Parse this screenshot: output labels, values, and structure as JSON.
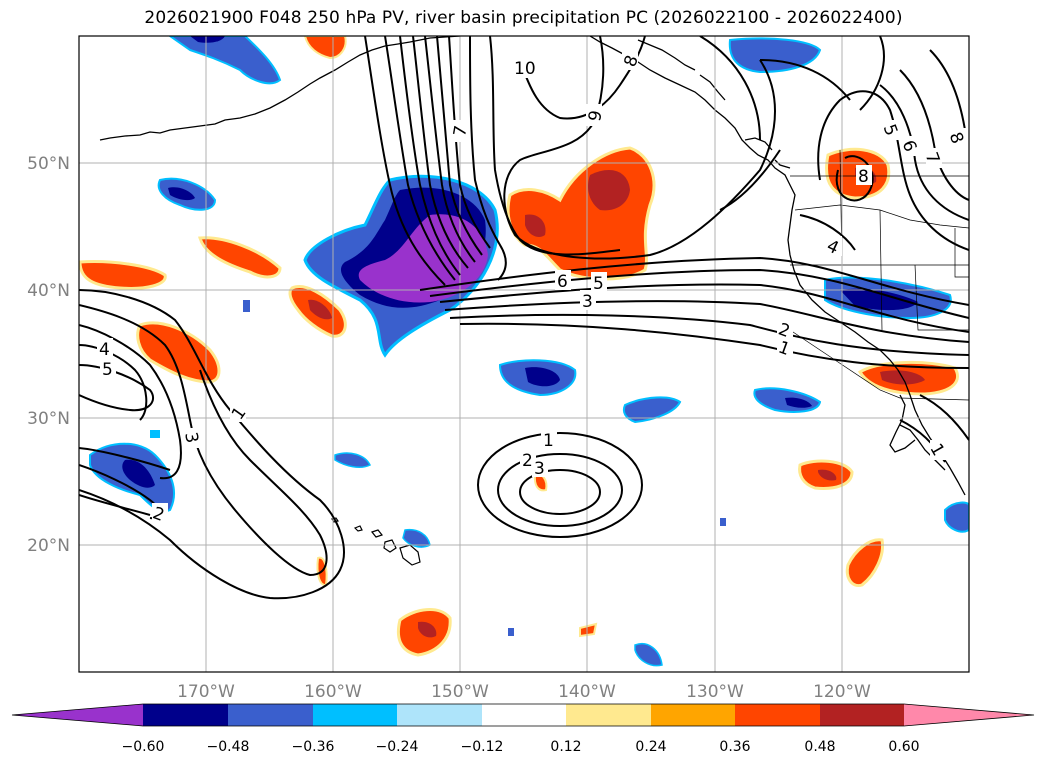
{
  "title": "2026021900 F048 250 hPa PV, river basin precipitation PC (2026022100 - 2026022400)",
  "map": {
    "lon_ticks": [
      {
        "value": -170,
        "label": "170°W"
      },
      {
        "value": -160,
        "label": "160°W"
      },
      {
        "value": -150,
        "label": "150°W"
      },
      {
        "value": -140,
        "label": "140°W"
      },
      {
        "value": -130,
        "label": "130°W"
      },
      {
        "value": -120,
        "label": "120°W"
      }
    ],
    "lat_ticks": [
      {
        "value": 20,
        "label": "20°N"
      },
      {
        "value": 30,
        "label": "30°N"
      },
      {
        "value": 40,
        "label": "40°N"
      },
      {
        "value": 50,
        "label": "50°N"
      }
    ],
    "extent": {
      "lon_min": -180,
      "lon_max": -110,
      "lat_min": 10,
      "lat_max": 60
    },
    "grid": true,
    "pv_contour_labels": [
      "1",
      "2",
      "3",
      "4",
      "5",
      "6",
      "7",
      "8",
      "9",
      "10"
    ]
  },
  "colorbar": {
    "labels": [
      "−0.60",
      "−0.48",
      "−0.36",
      "−0.24",
      "−0.12",
      "0.12",
      "0.24",
      "0.36",
      "0.48",
      "0.60"
    ],
    "colors": [
      "#9932CC",
      "#00008B",
      "#3A5FCD",
      "#00BFFF",
      "#AEE4FA",
      "#FFFFFF",
      "#FFE98F",
      "#FFA500",
      "#FF4500",
      "#B22222",
      "#FF88AA"
    ],
    "extend": "both"
  }
}
